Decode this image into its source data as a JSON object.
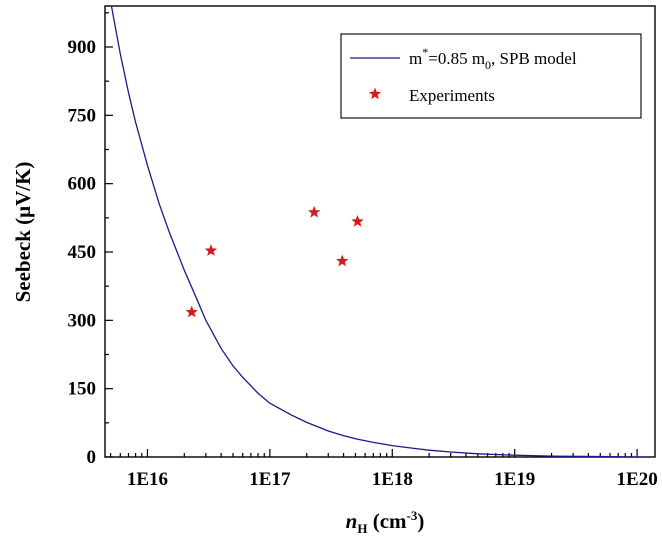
{
  "chart_data": {
    "type": "scatter",
    "xscale": "log",
    "xlim": [
      4500000000000000.0,
      1.4e+20
    ],
    "ylim": [
      0,
      990
    ],
    "x_ticks": [
      {
        "value": 1e+16,
        "label": "1E16"
      },
      {
        "value": 1e+17,
        "label": "1E17"
      },
      {
        "value": 1e+18,
        "label": "1E18"
      },
      {
        "value": 1e+19,
        "label": "1E19"
      },
      {
        "value": 1e+20,
        "label": "1E20"
      }
    ],
    "y_ticks": [
      {
        "value": 0,
        "label": "0"
      },
      {
        "value": 150,
        "label": "150"
      },
      {
        "value": 300,
        "label": "300"
      },
      {
        "value": 450,
        "label": "450"
      },
      {
        "value": 600,
        "label": "600"
      },
      {
        "value": 750,
        "label": "750"
      },
      {
        "value": 900,
        "label": "900"
      }
    ],
    "ylabel": "Seebeck (μV/K)",
    "xlabel": {
      "main": "n",
      "sub": "H",
      "unit_open": " (cm",
      "sup": "-3",
      "unit_close": ")"
    },
    "grid": false,
    "legend_position": "top-right",
    "series": [
      {
        "name": "m*=0.85 m0, SPB model",
        "name_parts": {
          "a": "m",
          "sup": "*",
          "b": "=0.85 m",
          "sub": "0",
          "c": ", SPB model"
        },
        "kind": "line",
        "color": "#1a1a8c",
        "x": [
          5000000000000000.0,
          6000000000000000.0,
          7000000000000000.0,
          8000000000000000.0,
          1e+16,
          1.25e+16,
          1.5e+16,
          2e+16,
          2.5e+16,
          3e+16,
          4e+16,
          5e+16,
          6e+16,
          8e+16,
          1e+17,
          1.5e+17,
          2e+17,
          3e+17,
          4e+17,
          5e+17,
          7e+17,
          1e+18,
          1.5e+18,
          2e+18,
          3e+18,
          5e+18,
          1e+19,
          2e+19,
          5e+19,
          1e+20,
          1.2e+20
        ],
        "y": [
          1000,
          885,
          800,
          735,
          640,
          555,
          495,
          410,
          350,
          300,
          238,
          200,
          175,
          140,
          118,
          92,
          76,
          57,
          47,
          40,
          32,
          25,
          19,
          15,
          11,
          7,
          4,
          2,
          1,
          0,
          0
        ]
      },
      {
        "name": "Experiments",
        "kind": "scatter",
        "marker": "star",
        "color": "#d21e1e",
        "x": [
          2.3e+16,
          3.3e+16,
          2.3e+17,
          3.9e+17,
          5.2e+17
        ],
        "y": [
          318,
          453,
          537,
          430,
          517
        ]
      }
    ]
  }
}
